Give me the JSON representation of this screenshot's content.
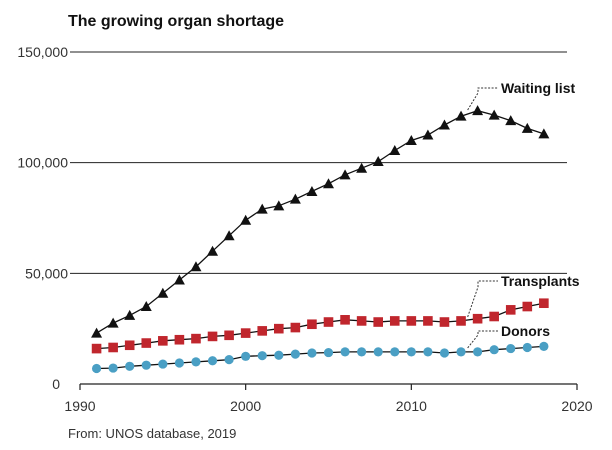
{
  "chart_data": {
    "type": "line",
    "title": "The growing organ shortage",
    "source": "From: UNOS database, 2019",
    "xlim": [
      1990,
      2020
    ],
    "ylim": [
      0,
      150000
    ],
    "x_ticks": [
      "1990",
      "2000",
      "2010",
      "2020"
    ],
    "y_ticks": [
      "0",
      "50,000",
      "100,000",
      "150,000"
    ],
    "grid": "horizontal",
    "x": [
      1991,
      1992,
      1993,
      1994,
      1995,
      1996,
      1997,
      1998,
      1999,
      2000,
      2001,
      2002,
      2003,
      2004,
      2005,
      2006,
      2007,
      2008,
      2009,
      2010,
      2011,
      2012,
      2013,
      2014,
      2015,
      2016,
      2017,
      2018
    ],
    "series": [
      {
        "name": "Waiting list",
        "color": "#111111",
        "marker": "triangle",
        "values": [
          23000,
          27500,
          31000,
          35000,
          41000,
          47000,
          53000,
          60000,
          67000,
          74000,
          79000,
          80500,
          83500,
          87000,
          90500,
          94500,
          97500,
          100500,
          105500,
          110000,
          112500,
          117000,
          121000,
          123500,
          121500,
          119000,
          115500,
          113000
        ]
      },
      {
        "name": "Transplants",
        "color": "#c0262d",
        "marker": "square",
        "values": [
          16000,
          16500,
          17500,
          18500,
          19500,
          20000,
          20500,
          21500,
          22000,
          23000,
          24000,
          25000,
          25500,
          27000,
          28000,
          29000,
          28500,
          28000,
          28500,
          28500,
          28500,
          28000,
          28500,
          29500,
          30500,
          33500,
          35000,
          36500
        ]
      },
      {
        "name": "Donors",
        "color": "#4a9fc4",
        "marker": "circle",
        "values": [
          7000,
          7200,
          8000,
          8500,
          9000,
          9500,
          10000,
          10500,
          11000,
          12500,
          12800,
          13000,
          13500,
          14000,
          14200,
          14500,
          14500,
          14500,
          14500,
          14500,
          14500,
          14000,
          14500,
          14500,
          15500,
          16000,
          16500,
          17000
        ]
      }
    ]
  }
}
